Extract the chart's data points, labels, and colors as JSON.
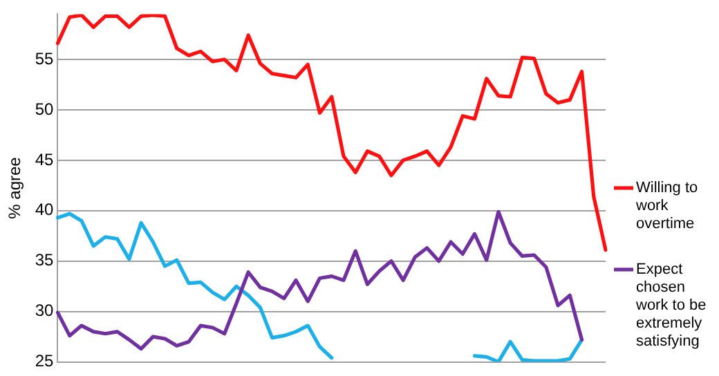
{
  "chart_data": {
    "type": "line",
    "ylabel": "% agree",
    "categories": [
      null,
      null,
      null,
      null,
      null,
      null,
      null,
      null,
      null,
      null,
      null,
      null,
      null,
      null,
      null,
      null,
      null,
      null,
      null,
      null,
      null,
      null,
      null,
      null,
      null,
      null,
      null,
      null,
      null,
      null,
      null,
      null,
      null,
      null,
      null,
      null,
      null,
      null,
      null,
      null,
      null,
      null,
      null,
      null,
      null,
      null,
      null
    ],
    "series": [
      {
        "name": "Willing to work overtime",
        "color": "#ff1010",
        "values": [
          56.6,
          59.2,
          59.4,
          58.2,
          59.3,
          59.3,
          58.2,
          59.3,
          59.4,
          59.3,
          56.1,
          55.4,
          55.8,
          54.8,
          55.0,
          53.9,
          57.4,
          54.6,
          53.6,
          53.4,
          53.2,
          54.5,
          49.7,
          51.3,
          45.4,
          43.8,
          45.9,
          45.4,
          43.5,
          45.0,
          45.4,
          45.9,
          44.5,
          46.3,
          49.4,
          49.1,
          53.1,
          51.4,
          51.3,
          55.2,
          55.1,
          51.6,
          50.7,
          51.0,
          53.8,
          41.4,
          36.1
        ]
      },
      {
        "name": "Expect chosen work to be extremely satisfying",
        "color": "#7030a0",
        "values": [
          29.9,
          27.6,
          28.6,
          28.0,
          27.8,
          28.0,
          27.2,
          26.3,
          27.5,
          27.3,
          26.6,
          27.0,
          28.6,
          28.4,
          27.8,
          30.8,
          33.9,
          32.4,
          32.0,
          31.3,
          33.1,
          31.0,
          33.3,
          33.5,
          33.1,
          36.0,
          32.7,
          34.0,
          35.0,
          33.1,
          35.4,
          36.3,
          35.0,
          36.9,
          35.7,
          37.7,
          35.1,
          39.9,
          36.8,
          35.5,
          35.6,
          34.4,
          30.6,
          31.6,
          27.2,
          null,
          null
        ]
      },
      {
        "color": "#1cb0ea",
        "values": [
          39.3,
          39.7,
          39.0,
          36.5,
          37.4,
          37.2,
          35.2,
          38.8,
          36.9,
          34.5,
          35.1,
          32.8,
          32.9,
          31.9,
          31.2,
          32.5,
          31.6,
          30.4,
          27.4,
          27.6,
          28.0,
          28.6,
          26.5,
          25.4,
          null,
          null,
          null,
          null,
          null,
          null,
          null,
          null,
          null,
          null,
          null,
          25.6,
          25.5,
          25.0,
          27.0,
          25.2,
          25.1,
          25.1,
          25.1,
          25.3,
          27.2,
          null,
          null
        ]
      }
    ],
    "ylim": [
      25,
      59.5
    ],
    "yticks": [
      25,
      30,
      35,
      40,
      45,
      50,
      55
    ],
    "grid": "y",
    "legend": "right",
    "tick_labels": "y",
    "marker": "none",
    "line_style": "solid"
  }
}
